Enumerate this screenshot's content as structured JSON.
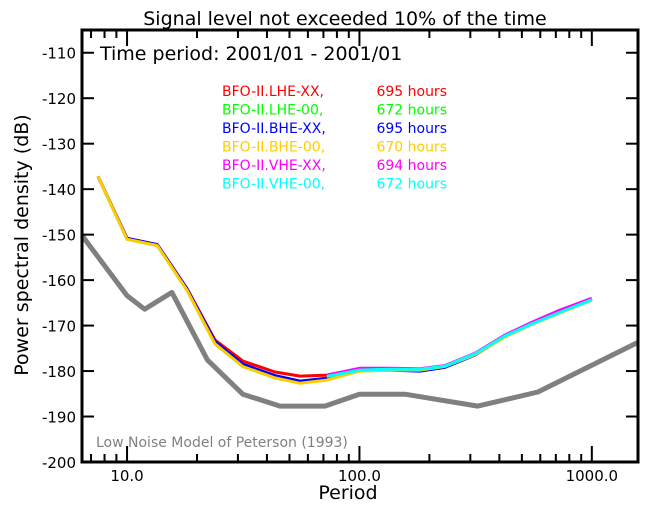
{
  "chart_data": {
    "type": "line",
    "title": "Signal level not exceeded 10% of the time",
    "subtitle": "Time period: 2001/01 - 2001/01",
    "xlabel": "Period",
    "ylabel": "Power spectral density (dB)",
    "xscale": "log",
    "xlim": [
      6.4,
      1580
    ],
    "ylim": [
      -200,
      -105
    ],
    "xticks": [
      10,
      100,
      1000
    ],
    "xtick_labels": [
      "10.0",
      "100.0",
      "1000.0"
    ],
    "yticks": [
      -200,
      -190,
      -180,
      -170,
      -160,
      -150,
      -140,
      -130,
      -120,
      -110
    ],
    "ytick_labels": [
      "-200",
      "-190",
      "-180",
      "-170",
      "-160",
      "-150",
      "-140",
      "-130",
      "-120",
      "-110"
    ],
    "legend_placement": "top-center",
    "x": [
      7.5,
      10,
      13.5,
      18.1,
      23.9,
      31.5,
      43.3,
      55.5,
      72.4,
      100,
      135,
      182,
      233,
      314,
      422,
      541,
      728,
      1000
    ],
    "series": [
      {
        "name": "BFO-II.LHE-XX,",
        "hours": "695 hours",
        "color": "#ff0000",
        "values": [
          -137.2,
          -150.8,
          -152.2,
          -161.8,
          -173.2,
          -177.8,
          -180.2,
          -181.1,
          -180.9,
          -179.6,
          -179.6,
          -179.6,
          -178.9,
          -176.3,
          -172.3,
          -169.7,
          -166.9,
          -164.2
        ]
      },
      {
        "name": "BFO-II.LHE-00,",
        "hours": "672 hours",
        "color": "#00ff00",
        "values": [
          -137.2,
          -151.0,
          -152.4,
          -162.2,
          -174.0,
          -179.0,
          -181.5,
          -182.6,
          -181.9,
          -180.0,
          -179.8,
          -179.8,
          -179.0,
          -176.4,
          -172.5,
          -169.9,
          -167.2,
          -164.4
        ]
      },
      {
        "name": "BFO-II.BHE-XX,",
        "hours": "695 hours",
        "color": "#0000ff",
        "values": [
          -137.2,
          -150.8,
          -152.2,
          -161.9,
          -173.5,
          -178.5,
          -181.0,
          -182.2,
          -181.6,
          -179.8,
          -179.8,
          -180.0,
          -179.2,
          -176.5,
          -172.4,
          -169.8,
          -167.0,
          -164.3
        ]
      },
      {
        "name": "BFO-II.BHE-00,",
        "hours": "670 hours",
        "color": "#ffcc00",
        "values": [
          -137.2,
          -151.0,
          -152.4,
          -162.2,
          -174.0,
          -179.0,
          -181.5,
          -182.7,
          -182.0,
          -180.0,
          -179.8,
          -179.8,
          -179.0,
          -176.4,
          -172.5,
          -169.9,
          -167.2,
          -164.4
        ]
      },
      {
        "name": "BFO-II.VHE-XX,",
        "hours": "694 hours",
        "color": "#ff00ff",
        "values": [
          null,
          null,
          null,
          null,
          null,
          null,
          null,
          null,
          -180.9,
          -179.4,
          -179.4,
          -179.5,
          -178.8,
          -176.1,
          -172.1,
          -169.5,
          -166.6,
          -164.0
        ]
      },
      {
        "name": "BFO-II.VHE-00,",
        "hours": "672 hours",
        "color": "#00ffff",
        "values": [
          null,
          null,
          null,
          null,
          null,
          null,
          null,
          null,
          -181.2,
          -179.8,
          -179.6,
          -179.6,
          -178.9,
          -176.2,
          -172.3,
          -169.8,
          -167.1,
          -164.3
        ]
      }
    ],
    "reference_model": {
      "label": "Low Noise Model of Peterson (1993)",
      "color": "#808080",
      "x": [
        6.4,
        10,
        11.9,
        15.6,
        22.2,
        31.5,
        45.5,
        71,
        100,
        157,
        323,
        586,
        1578
      ],
      "values": [
        -150.2,
        -163.4,
        -166.4,
        -162.7,
        -177.6,
        -185.1,
        -187.7,
        -187.7,
        -185.1,
        -185.1,
        -187.7,
        -184.6,
        -173.7
      ]
    }
  }
}
